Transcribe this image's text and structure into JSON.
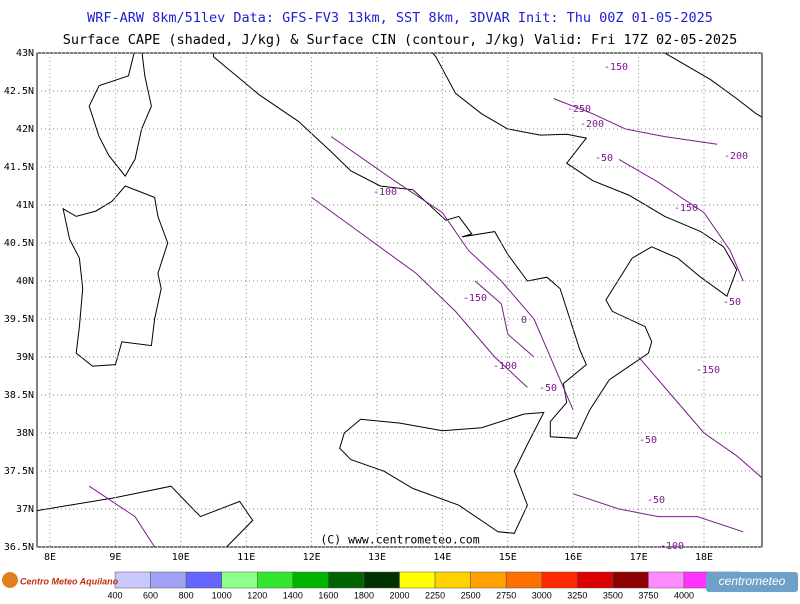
{
  "header": {
    "line1": "WRF-ARW 8km/51lev  Data: GFS-FV3 13km, SST 8km, 3DVAR  Init: Thu 00Z 01-05-2025",
    "line2": "Surface CAPE (shaded, J/kg) & Surface CIN (contour, J/kg)  Valid: Fri 17Z 02-05-2025"
  },
  "map": {
    "lat_labels": [
      "43N",
      "42.5N",
      "42N",
      "41.5N",
      "41N",
      "40.5N",
      "40N",
      "39.5N",
      "39N",
      "38.5N",
      "38N",
      "37.5N",
      "37N",
      "36.5N"
    ],
    "lon_labels": [
      "8E",
      "9E",
      "10E",
      "11E",
      "12E",
      "13E",
      "14E",
      "15E",
      "16E",
      "17E",
      "18E"
    ],
    "copyright": "(C) www.centrometeo.com",
    "contour_labels": [
      "-150",
      "-250",
      "-200",
      "-50",
      "-200",
      "-150",
      "-50",
      "-150",
      "0",
      "-100",
      "-50",
      "-150",
      "-50",
      "-50",
      "-100",
      "-100"
    ]
  },
  "colorbar": {
    "labels": [
      400,
      600,
      800,
      1000,
      1200,
      1400,
      1600,
      1800,
      2000,
      2250,
      2500,
      2750,
      3000,
      3250,
      3500,
      3750,
      4000
    ],
    "colors": [
      "#c8c8ff",
      "#a0a0f5",
      "#6464ff",
      "#8cff8c",
      "#32e632",
      "#00b400",
      "#006400",
      "#003200",
      "#ffff00",
      "#ffd200",
      "#ffa000",
      "#ff6e00",
      "#ff2800",
      "#dc0000",
      "#8c0000",
      "#ff8cff",
      "#ff32ff",
      "#c800c8"
    ]
  },
  "logos": {
    "left": "Centro Meteo Aquilano",
    "right": "centrometeo"
  }
}
